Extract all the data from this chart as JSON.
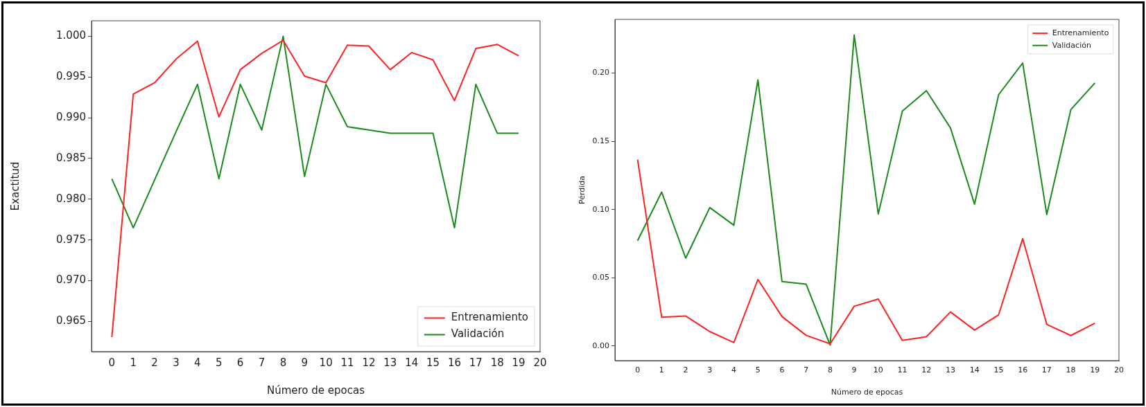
{
  "chart_data": [
    {
      "type": "line",
      "xlabel": "Número de epocas",
      "ylabel": "Exactitud",
      "x": [
        0,
        1,
        2,
        3,
        4,
        5,
        6,
        7,
        8,
        9,
        10,
        11,
        12,
        13,
        14,
        15,
        16,
        17,
        18,
        19
      ],
      "xlim": [
        -0.95,
        20
      ],
      "xticks": [
        0,
        1,
        2,
        3,
        4,
        5,
        6,
        7,
        8,
        9,
        10,
        11,
        12,
        13,
        14,
        15,
        16,
        17,
        18,
        19,
        20
      ],
      "ylim": [
        0.9613,
        1.0019
      ],
      "yticks": [
        {
          "value": 0.965,
          "label": "0.965"
        },
        {
          "value": 0.97,
          "label": "0.970"
        },
        {
          "value": 0.975,
          "label": "0.975"
        },
        {
          "value": 0.98,
          "label": "0.980"
        },
        {
          "value": 0.985,
          "label": "0.985"
        },
        {
          "value": 0.99,
          "label": "0.990"
        },
        {
          "value": 0.995,
          "label": "0.995"
        },
        {
          "value": 1,
          "label": "1.000"
        }
      ],
      "grid": false,
      "legend": "bottom right",
      "series": [
        {
          "name": "Entrenamiento",
          "color": "#ff2020",
          "values": [
            0.9631,
            0.9929,
            0.9943,
            0.9972,
            0.9994,
            0.9901,
            0.9959,
            0.9979,
            0.9995,
            0.9951,
            0.9943,
            0.9989,
            0.9988,
            0.9959,
            0.998,
            0.9971,
            0.9921,
            0.9985,
            0.999,
            0.9976
          ]
        },
        {
          "name": "Validación",
          "color": "#1a8a1a",
          "values": [
            0.9825,
            0.9765,
            0.9824,
            0.9883,
            0.9941,
            0.9825,
            0.9941,
            0.9885,
            1.0,
            0.9828,
            0.9941,
            0.9889,
            0.9885,
            0.9881,
            0.9881,
            0.9881,
            0.9765,
            0.9941,
            0.9881,
            0.9881
          ]
        }
      ]
    },
    {
      "type": "line",
      "xlabel": "Número de epocas",
      "ylabel": "Pérdida",
      "x": [
        0,
        1,
        2,
        3,
        4,
        5,
        6,
        7,
        8,
        9,
        10,
        11,
        12,
        13,
        14,
        15,
        16,
        17,
        18,
        19
      ],
      "xlim": [
        -0.94,
        20
      ],
      "xticks": [
        0,
        1,
        2,
        3,
        4,
        5,
        6,
        7,
        8,
        9,
        10,
        11,
        12,
        13,
        14,
        15,
        16,
        17,
        18,
        19,
        20
      ],
      "ylim": [
        -0.0108,
        0.2394
      ],
      "yticks": [
        {
          "value": 0,
          "label": "0.00"
        },
        {
          "value": 0.05,
          "label": "0.05"
        },
        {
          "value": 0.1,
          "label": "0.10"
        },
        {
          "value": 0.15,
          "label": "0.15"
        },
        {
          "value": 0.2,
          "label": "0.20"
        }
      ],
      "grid": false,
      "legend": "top right",
      "series": [
        {
          "name": "Entrenamiento",
          "color": "#ff2020",
          "values": [
            0.1366,
            0.0211,
            0.0219,
            0.0105,
            0.0025,
            0.0487,
            0.0215,
            0.0078,
            0.0015,
            0.0291,
            0.0344,
            0.004,
            0.0067,
            0.0249,
            0.0116,
            0.0228,
            0.0786,
            0.0158,
            0.0076,
            0.0167
          ]
        },
        {
          "name": "Validación",
          "color": "#1a8a1a",
          "values": [
            0.0771,
            0.1128,
            0.0643,
            0.1014,
            0.0885,
            0.1951,
            0.0472,
            0.0453,
            0.0006,
            0.228,
            0.0967,
            0.1722,
            0.1871,
            0.1598,
            0.1039,
            0.1842,
            0.2074,
            0.0963,
            0.1732,
            0.1928
          ]
        }
      ]
    }
  ]
}
